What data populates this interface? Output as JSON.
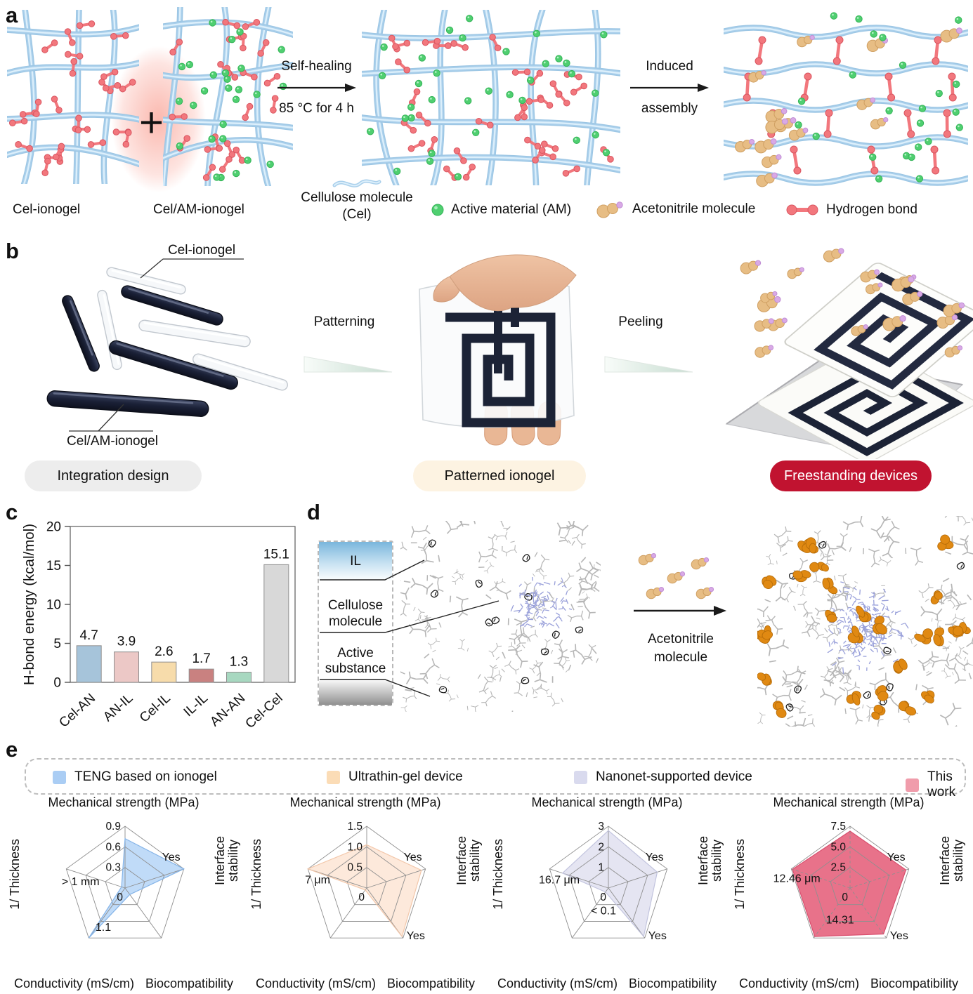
{
  "panel_labels": {
    "a": "a",
    "b": "b",
    "c": "c",
    "d": "d",
    "e": "e"
  },
  "panel_a": {
    "plus_sign": "+",
    "step1_label_top": "Self-healing",
    "step1_label_bottom": "85 °C for 4 h",
    "step2_label_top": "Induced",
    "step2_label_bottom": "assembly",
    "caption_cel_ionogel": "Cel-ionogel",
    "caption_cel_am_ionogel": "Cel/AM-ionogel",
    "legend_cellulose_line1": "Cellulose molecule",
    "legend_cellulose_line2": "(Cel)",
    "legend_active_material": "Active material (AM)",
    "legend_acetonitrile": "Acetonitrile molecule",
    "legend_hydrogen_bond": "Hydrogen bond"
  },
  "panel_b": {
    "callout_cel_ionogel": "Cel-ionogel",
    "callout_cel_am_ionogel": "Cel/AM-ionogel",
    "step_patterning": "Patterning",
    "step_peeling": "Peeling",
    "badge_integration": "Integration design",
    "badge_patterned": "Patterned ionogel",
    "badge_freestanding": "Freestanding devices"
  },
  "panel_d": {
    "layer_il": "IL",
    "layer_cellulose_line1": "Cellulose",
    "layer_cellulose_line2": "molecule",
    "layer_active_line1": "Active",
    "layer_active_line2": "substance",
    "arrow_label_line1": "Acetonitrile",
    "arrow_label_line2": "molecule"
  },
  "colors": {
    "badge_integration_bg": "#ededed",
    "badge_patterned_bg": "#fdf3e2",
    "badge_freestanding_bg": "#c11330",
    "fiber_blue": "#a9cfeb",
    "hbond_red": "#f2777d",
    "active_green": "#4fcf70",
    "acetonitrile_tan": "#e7bd84",
    "acetonitrile_purple": "#d9a9e6",
    "spiral_navy": "#1c2336"
  },
  "chart_data": [
    {
      "id": "hbond_bar",
      "type": "bar",
      "ylabel": "H-bond energy (kcal/mol)",
      "categories": [
        "Cel-AN",
        "AN-IL",
        "Cel-IL",
        "IL-IL",
        "AN-AN",
        "Cel-Cel"
      ],
      "values": [
        4.7,
        3.9,
        2.6,
        1.7,
        1.3,
        15.1
      ],
      "value_labels": [
        "4.7",
        "3.9",
        "2.6",
        "1.7",
        "1.3",
        "15.1"
      ],
      "bar_colors": [
        "#a6c4da",
        "#ecc8c6",
        "#f7dcab",
        "#c98180",
        "#a7d8c0",
        "#d8d8d8"
      ],
      "ylim": [
        0,
        20
      ],
      "yticks": [
        0,
        5,
        10,
        15,
        20
      ],
      "grid": false,
      "legend_position": "none"
    },
    {
      "id": "radar_teng",
      "type": "radar",
      "legend": "TENG based on ionogel",
      "swatch": "#aacdf4",
      "fill": "#b0d2f6",
      "stroke": "#85b4e8",
      "axes": [
        "Mechanical strength (MPa)",
        "Interface stability",
        "Biocompatibility",
        "Conductivity (mS/cm)",
        "1/ Thickness"
      ],
      "scale_ticks": [
        "0.9",
        "0.6",
        "0.3",
        "0"
      ],
      "values_norm": [
        0.8,
        1.0,
        0.13,
        1.0,
        0.06
      ],
      "annotations": {
        "interface_stability": "Yes",
        "biocompatibility": "",
        "conductivity": "1.1",
        "thickness": "> 1 mm"
      },
      "label_pos": {
        "conductivity_frac": 0.93,
        "thickness_frac": 0.78
      },
      "dashed_axes": false
    },
    {
      "id": "radar_ultrathin",
      "type": "radar",
      "legend": "Ultrathin-gel device",
      "swatch": "#fbdcb6",
      "fill": "#fce3d2",
      "stroke": "#f3c8ab",
      "axes": [
        "Mechanical strength (MPa)",
        "Interface stability",
        "Biocompatibility",
        "Conductivity (mS/cm)",
        "1/ Thickness"
      ],
      "scale_ticks": [
        "1.5",
        "1.0",
        "0.5",
        "0"
      ],
      "values_norm": [
        0.7,
        0.93,
        0.97,
        0.04,
        1.0
      ],
      "annotations": {
        "interface_stability": "Yes",
        "biocompatibility": "Yes",
        "conductivity": "",
        "thickness": "7 μm"
      },
      "label_pos": {
        "conductivity_frac": 0,
        "thickness_frac": 0.86
      },
      "dashed_axes": false
    },
    {
      "id": "radar_nanonet",
      "type": "radar",
      "legend": "Nanonet-supported device",
      "swatch": "#d9daee",
      "fill": "#dedfef",
      "stroke": "#c2c4de",
      "axes": [
        "Mechanical strength (MPa)",
        "Interface stability",
        "Biocompatibility",
        "Conductivity (mS/cm)",
        "1/ Thickness"
      ],
      "scale_ticks": [
        "3",
        "2",
        "1",
        "0"
      ],
      "values_norm": [
        0.93,
        0.83,
        0.97,
        0.08,
        0.78
      ],
      "annotations": {
        "interface_stability": "Yes",
        "biocompatibility": "Yes",
        "conductivity": "< 0.1",
        "thickness": "16.7 μm"
      },
      "label_pos": {
        "conductivity_frac": 0.6,
        "thickness_frac": 0.86
      },
      "dashed_axes": false
    },
    {
      "id": "radar_thiswork",
      "type": "radar",
      "legend": "This work",
      "swatch": "#f09cab",
      "fill": "#e76a84",
      "stroke": "#d94f6e",
      "axes": [
        "Mechanical strength (MPa)",
        "Interface stability",
        "Biocompatibility",
        "Conductivity (mS/cm)",
        "1/ Thickness"
      ],
      "scale_ticks": [
        "7.5",
        "5.0",
        "2.5",
        "0"
      ],
      "values_norm": [
        0.92,
        0.95,
        0.92,
        0.97,
        0.98
      ],
      "annotations": {
        "interface_stability": "Yes",
        "biocompatibility": "Yes",
        "conductivity": "14.31",
        "thickness": "12.46 μm"
      },
      "label_pos": {
        "conductivity_frac": 0.78,
        "thickness_frac": 0.93
      },
      "dashed_axes": true
    }
  ]
}
